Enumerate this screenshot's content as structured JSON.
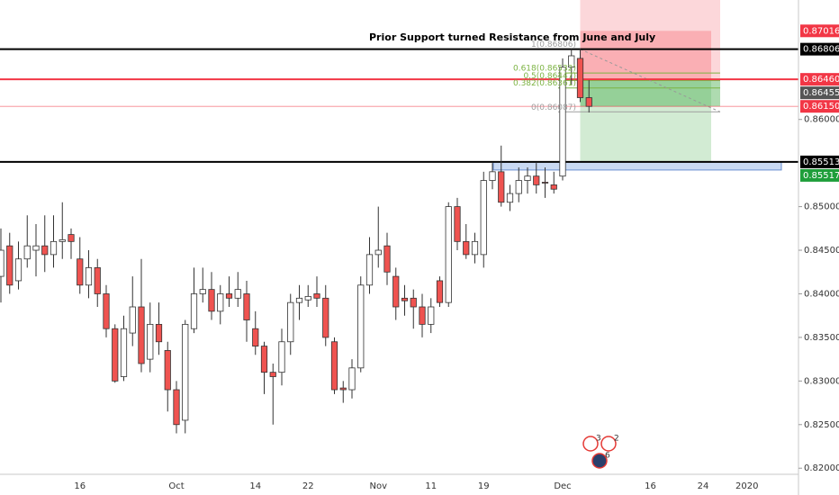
{
  "chart_data": {
    "type": "candlestick",
    "annotation": "Prior Support turned Resistance from June and July",
    "categories": [
      null,
      null,
      null,
      null,
      null,
      null,
      null,
      null,
      null,
      "16",
      null,
      null,
      null,
      null,
      null,
      null,
      null,
      null,
      null,
      null,
      "Oct",
      null,
      null,
      null,
      null,
      null,
      null,
      null,
      null,
      "14",
      null,
      null,
      null,
      null,
      null,
      "22",
      null,
      null,
      null,
      null,
      null,
      null,
      null,
      "Nov",
      null,
      null,
      null,
      null,
      null,
      "11",
      null,
      null,
      null,
      null,
      null,
      "19",
      null,
      null,
      null,
      null,
      null,
      null,
      null,
      null,
      "Dec",
      null,
      null,
      null,
      null,
      null,
      null,
      null,
      null,
      null,
      "16",
      null,
      null,
      null,
      null,
      null,
      "24",
      null,
      null,
      null,
      null,
      "2020"
    ],
    "open": [
      0.842,
      0.8455,
      0.8415,
      0.844,
      0.845,
      0.8455,
      0.8445,
      0.846,
      0.8468,
      0.844,
      0.841,
      0.843,
      0.84,
      0.836,
      0.8305,
      0.8355,
      0.8385,
      0.8325,
      0.8365,
      0.8335,
      0.829,
      0.8255,
      0.836,
      0.84,
      0.8405,
      0.838,
      0.84,
      0.8395,
      0.84,
      0.836,
      0.834,
      0.831,
      0.831,
      0.8345,
      0.839,
      0.8393,
      0.84,
      0.8395,
      0.8345,
      0.8292,
      0.829,
      0.8315,
      0.841,
      0.8445,
      0.8455,
      0.842,
      0.8395,
      0.8395,
      0.8385,
      0.8365,
      0.8415,
      0.839,
      0.85,
      0.846,
      0.8445,
      0.8445,
      0.853,
      0.854,
      0.8505,
      0.8515,
      0.853,
      0.8535,
      0.8528,
      0.8525,
      0.8535,
      0.866,
      0.867,
      0.8625,
      null,
      null,
      null,
      null,
      null,
      null,
      null,
      null,
      null,
      null,
      null,
      null,
      null,
      null,
      null,
      null,
      null,
      null
    ],
    "high": [
      0.8475,
      0.847,
      0.846,
      0.849,
      0.848,
      0.849,
      0.849,
      0.8505,
      0.8475,
      0.8465,
      0.845,
      0.844,
      0.841,
      0.8365,
      0.8375,
      0.842,
      0.844,
      0.839,
      0.839,
      0.8345,
      0.83,
      0.837,
      0.843,
      0.843,
      0.8425,
      0.841,
      0.842,
      0.8425,
      0.8415,
      0.838,
      0.8345,
      0.832,
      0.836,
      0.84,
      0.841,
      0.841,
      0.842,
      0.841,
      0.835,
      0.83,
      0.8325,
      0.842,
      0.8465,
      0.85,
      0.847,
      0.843,
      0.841,
      0.8405,
      0.84,
      0.8395,
      0.842,
      0.8505,
      0.851,
      0.848,
      0.847,
      0.854,
      0.855,
      0.857,
      0.8525,
      0.8545,
      0.8545,
      0.855,
      0.8545,
      0.854,
      0.867,
      0.8681,
      0.8681,
      0.8645,
      null,
      null,
      null,
      null,
      null,
      null,
      null,
      null,
      null,
      null,
      null,
      null,
      null,
      null,
      null,
      null,
      null,
      null
    ],
    "low": [
      0.839,
      0.84,
      0.8405,
      0.843,
      0.842,
      0.8425,
      0.843,
      0.844,
      0.844,
      0.84,
      0.8395,
      0.8385,
      0.835,
      0.8298,
      0.83,
      0.834,
      0.831,
      0.831,
      0.833,
      0.8265,
      0.824,
      0.824,
      0.8355,
      0.839,
      0.837,
      0.8365,
      0.8385,
      0.8385,
      0.8345,
      0.833,
      0.8285,
      0.825,
      0.8295,
      0.833,
      0.837,
      0.8385,
      0.8385,
      0.834,
      0.8285,
      0.8275,
      0.828,
      0.831,
      0.84,
      0.843,
      0.841,
      0.837,
      0.8375,
      0.836,
      0.835,
      0.8355,
      0.8385,
      0.8385,
      0.845,
      0.844,
      0.8435,
      0.843,
      0.852,
      0.85,
      0.8495,
      0.8505,
      0.8515,
      0.8515,
      0.851,
      0.8515,
      0.853,
      0.864,
      0.862,
      0.8608,
      null,
      null,
      null,
      null,
      null,
      null,
      null,
      null,
      null,
      null,
      null,
      null,
      null,
      null,
      null,
      null,
      null,
      null
    ],
    "close": [
      0.845,
      0.841,
      0.844,
      0.8455,
      0.8455,
      0.8445,
      0.846,
      0.8462,
      0.846,
      0.841,
      0.843,
      0.84,
      0.836,
      0.83,
      0.836,
      0.8385,
      0.832,
      0.8365,
      0.8345,
      0.829,
      0.825,
      0.8365,
      0.84,
      0.8405,
      0.838,
      0.84,
      0.8395,
      0.8405,
      0.837,
      0.834,
      0.831,
      0.8305,
      0.8345,
      0.839,
      0.8395,
      0.8397,
      0.8395,
      0.835,
      0.829,
      0.829,
      0.8315,
      0.841,
      0.8445,
      0.845,
      0.8425,
      0.8385,
      0.8392,
      0.8385,
      0.8365,
      0.8385,
      0.839,
      0.85,
      0.846,
      0.8445,
      0.846,
      0.853,
      0.854,
      0.8505,
      0.8515,
      0.853,
      0.8535,
      0.8525,
      0.8527,
      0.852,
      0.866,
      0.8673,
      0.8625,
      0.8615,
      null,
      null,
      null,
      null,
      null,
      null,
      null,
      null,
      null,
      null,
      null,
      null,
      null,
      null,
      null,
      null,
      null,
      null
    ],
    "up_color": "#ffffff",
    "down_color": "#ef5350",
    "ylim": [
      0.8193,
      0.8737
    ],
    "yticks": [
      {
        "value": 0.82,
        "label": "0.82000"
      },
      {
        "value": 0.825,
        "label": "0.82500"
      },
      {
        "value": 0.83,
        "label": "0.83000"
      },
      {
        "value": 0.835,
        "label": "0.83500"
      },
      {
        "value": 0.84,
        "label": "0.84000"
      },
      {
        "value": 0.845,
        "label": "0.84500"
      },
      {
        "value": 0.85,
        "label": "0.85000"
      },
      {
        "value": 0.86,
        "label": "0.86000"
      }
    ],
    "price_markers": [
      {
        "value": 0.87016,
        "label": "0.87016",
        "color": "#f23645"
      },
      {
        "value": 0.86806,
        "label": "0.86806",
        "color": "#000000",
        "line": "thick"
      },
      {
        "value": 0.8646,
        "label": "0.86460",
        "color": "#f23645",
        "line": "thick"
      },
      {
        "value": 0.86455,
        "label": "0.86455",
        "color": "#555555"
      },
      {
        "value": 0.8615,
        "label": "0.86150",
        "color": "#f23645",
        "line": "thin"
      },
      {
        "value": 0.85513,
        "label": "0.85513",
        "color": "#000000",
        "line": "thick"
      },
      {
        "value": 0.85517,
        "label": "0.85517",
        "color": "#1e9e3a"
      }
    ],
    "zone": {
      "top": 0.85513,
      "bottom": 0.8542,
      "color": "#c9d9f2"
    },
    "position": {
      "stop": 0.8737,
      "high": 0.87016,
      "entry": 0.8646,
      "current": 0.8615,
      "target": 0.85513
    },
    "fib": [
      {
        "value": 0.86806,
        "label": "1(0.86806)",
        "color": "#9e9e9e"
      },
      {
        "value": 0.86532,
        "label": "0.618(0.86532)",
        "color": "#7cb342"
      },
      {
        "value": 0.86447,
        "label": "0.5(0.86447)",
        "color": "#7cb342"
      },
      {
        "value": 0.86361,
        "label": "0.382(0.86361)",
        "color": "#7cb342"
      },
      {
        "value": 0.86087,
        "label": "0(0.86087)",
        "color": "#9e9e9e"
      }
    ],
    "events": [
      "3",
      "2",
      "6"
    ]
  }
}
